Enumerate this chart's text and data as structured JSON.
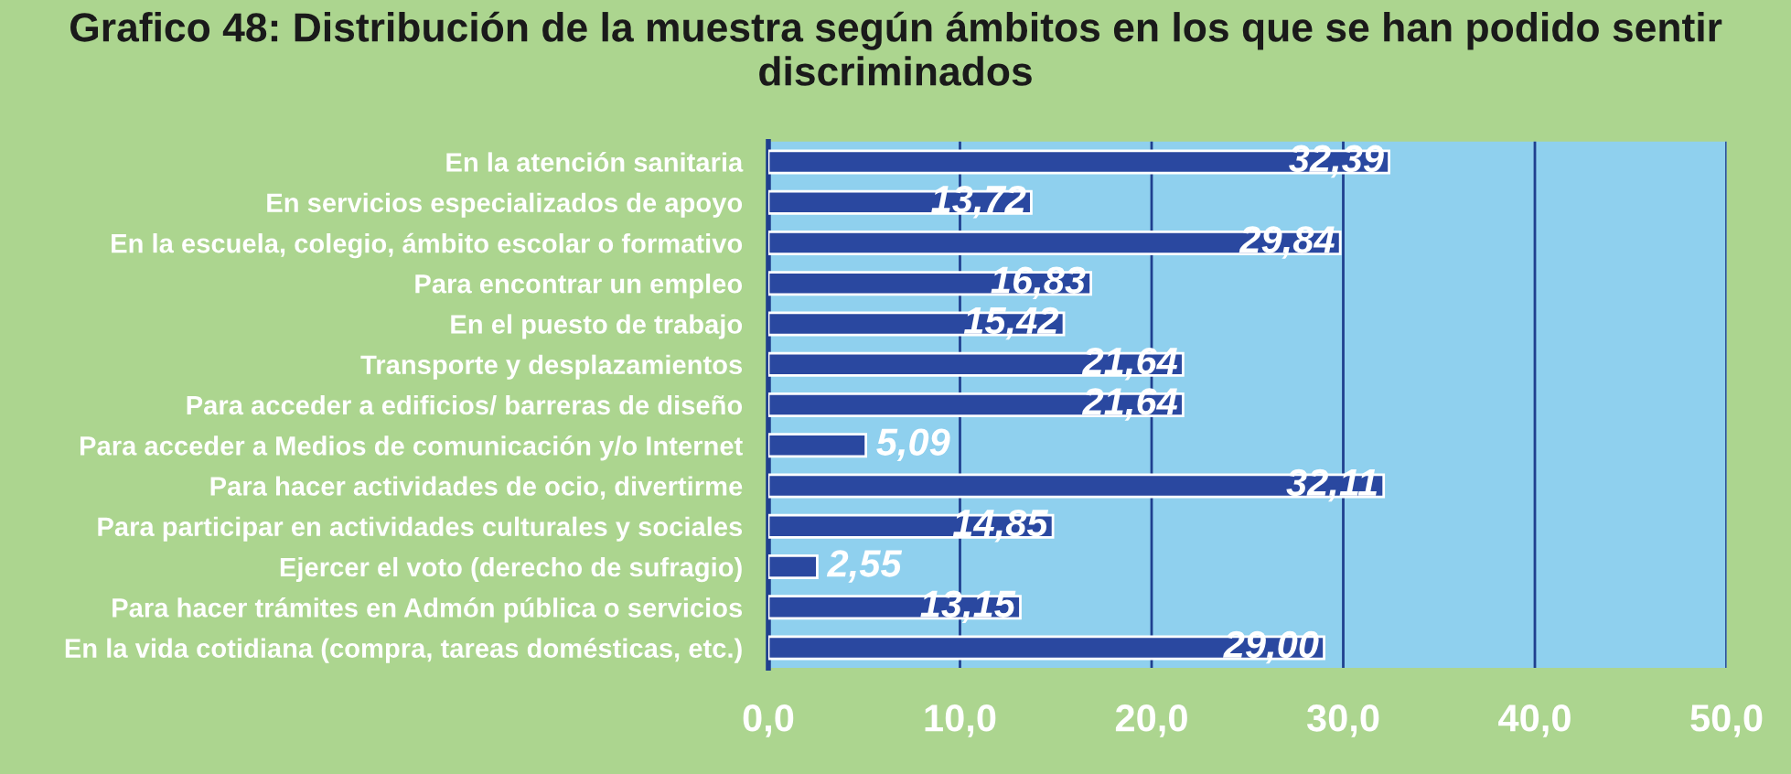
{
  "chart_data": {
    "type": "bar",
    "orientation": "horizontal",
    "title": "Grafico 48: Distribución de la muestra según ámbitos en los que se han podido sentir discriminados",
    "categories": [
      "En la atención sanitaria",
      "En servicios especializados de apoyo",
      "En la escuela, colegio, ámbito escolar o formativo",
      "Para encontrar un empleo",
      "En el puesto de trabajo",
      "Transporte y desplazamientos",
      "Para acceder a edificios/ barreras de diseño",
      "Para acceder a Medios de comunicación y/o Internet",
      "Para hacer actividades de ocio, divertirme",
      "Para participar en actividades culturales y sociales",
      "Ejercer el voto (derecho de sufragio)",
      "Para hacer trámites en Admón pública o servicios",
      "En la vida cotidiana (compra, tareas domésticas, etc.)"
    ],
    "values": [
      32.39,
      13.72,
      29.84,
      16.83,
      15.42,
      21.64,
      21.64,
      5.09,
      32.11,
      14.85,
      2.55,
      13.15,
      29.0
    ],
    "value_labels": [
      "32,39",
      "13,72",
      "29,84",
      "16,83",
      "15,42",
      "21,64",
      "21,64",
      "5,09",
      "32,11",
      "14,85",
      "2,55",
      "13,15",
      "29,00"
    ],
    "color": "#2a48a0",
    "xlim": [
      0,
      50
    ],
    "xticks": [
      {
        "value": 0,
        "label": "0,0"
      },
      {
        "value": 10,
        "label": "10,0"
      },
      {
        "value": 20,
        "label": "20,0"
      },
      {
        "value": 30,
        "label": "30,0"
      },
      {
        "value": 40,
        "label": "40,0"
      },
      {
        "value": 50,
        "label": "50,0"
      }
    ],
    "grid": "x",
    "legend": false
  }
}
